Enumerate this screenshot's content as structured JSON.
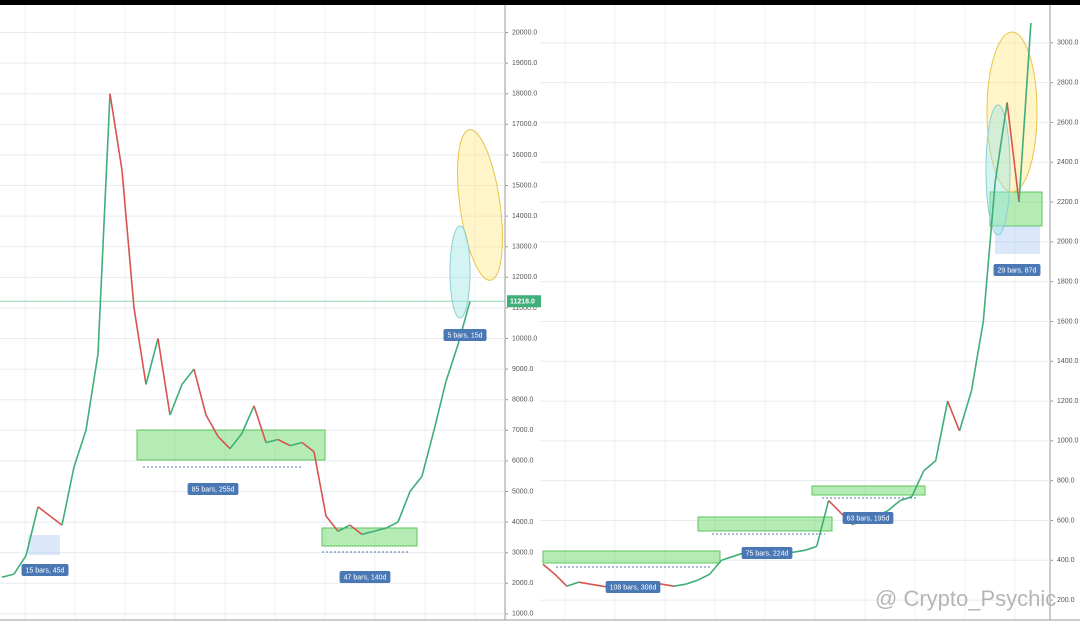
{
  "chart_data": [
    {
      "type": "line",
      "series": [
        {
          "values": [
            2200,
            2300,
            2900,
            4500,
            4200,
            3900,
            5800,
            7000,
            9500,
            18000,
            15500,
            11000,
            8500,
            10000,
            7500,
            8500,
            9000,
            7500,
            6800,
            6400,
            6900,
            7800,
            6600,
            6700,
            6500,
            6600,
            6300,
            4200,
            3700,
            3900,
            3600,
            3700,
            3800,
            4000,
            5000,
            5500,
            7000,
            8600,
            9800,
            11218
          ]
        }
      ],
      "up_color": "#3fae78",
      "down_color": "#d9534f",
      "ylim": [
        800,
        20900
      ],
      "yticks": [
        {
          "value": 1000,
          "label": "1000.0"
        },
        {
          "value": 2000,
          "label": "2000.0"
        },
        {
          "value": 3000,
          "label": "3000.0"
        },
        {
          "value": 4000,
          "label": "4000.0"
        },
        {
          "value": 5000,
          "label": "5000.0"
        },
        {
          "value": 6000,
          "label": "6000.0"
        },
        {
          "value": 7000,
          "label": "7000.0"
        },
        {
          "value": 8000,
          "label": "8000.0"
        },
        {
          "value": 9000,
          "label": "9000.0"
        },
        {
          "value": 10000,
          "label": "10000.0"
        },
        {
          "value": 11000,
          "label": "11000.0"
        },
        {
          "value": 12000,
          "label": "12000.0"
        },
        {
          "value": 13000,
          "label": "13000.0"
        },
        {
          "value": 14000,
          "label": "14000.0"
        },
        {
          "value": 15000,
          "label": "15000.0"
        },
        {
          "value": 16000,
          "label": "16000.0"
        },
        {
          "value": 17000,
          "label": "17000.0"
        },
        {
          "value": 18000,
          "label": "18000.0"
        },
        {
          "value": 19000,
          "label": "19000.0"
        },
        {
          "value": 20000,
          "label": "20000.0"
        }
      ],
      "grid": true,
      "annotations": [
        "15 bars, 45d",
        "85 bars, 255d",
        "47 bars, 140d",
        "5 bars, 15d"
      ],
      "price_label": {
        "value": 11218,
        "label": "11218.0"
      }
    },
    {
      "type": "line",
      "series": [
        {
          "values": [
            380,
            330,
            270,
            290,
            280,
            270,
            260,
            270,
            280,
            290,
            280,
            270,
            280,
            300,
            330,
            400,
            420,
            440,
            420,
            430,
            440,
            440,
            450,
            470,
            700,
            640,
            580,
            600,
            620,
            650,
            700,
            720,
            850,
            900,
            1200,
            1050,
            1250,
            1600,
            2300,
            2700,
            2200,
            3100
          ]
        }
      ],
      "up_color": "#3fae78",
      "down_color": "#d9534f",
      "ylim": [
        100,
        3190
      ],
      "yticks": [
        {
          "value": 200,
          "label": "200.0"
        },
        {
          "value": 400,
          "label": "400.0"
        },
        {
          "value": 600,
          "label": "600.0"
        },
        {
          "value": 800,
          "label": "800.0"
        },
        {
          "value": 1000,
          "label": "1000.0"
        },
        {
          "value": 1200,
          "label": "1200.0"
        },
        {
          "value": 1400,
          "label": "1400.0"
        },
        {
          "value": 1600,
          "label": "1600.0"
        },
        {
          "value": 1800,
          "label": "1800.0"
        },
        {
          "value": 2000,
          "label": "2000.0"
        },
        {
          "value": 2200,
          "label": "2200.0"
        },
        {
          "value": 2400,
          "label": "2400.0"
        },
        {
          "value": 2600,
          "label": "2600.0"
        },
        {
          "value": 2800,
          "label": "2800.0"
        },
        {
          "value": 3000,
          "label": "3000.0"
        }
      ],
      "grid": true,
      "annotations": [
        "108 bars, 308d",
        "75 bars, 224d",
        "63 bars, 195d",
        "29 bars, 87d"
      ]
    }
  ],
  "watermark": "@ Crypto_Psychic"
}
